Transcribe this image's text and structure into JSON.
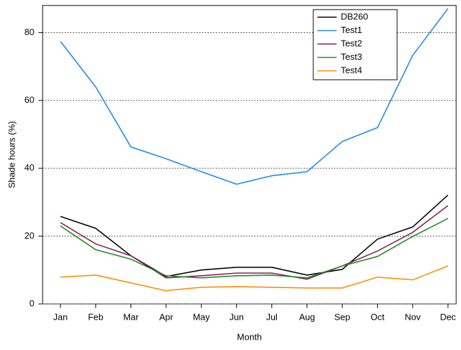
{
  "chart_data": {
    "type": "line",
    "xlabel": "Month",
    "ylabel": "Shade hours (%)",
    "categories": [
      "Jan",
      "Feb",
      "Mar",
      "Apr",
      "May",
      "Jun",
      "Jul",
      "Aug",
      "Sep",
      "Oct",
      "Nov",
      "Dec"
    ],
    "series": [
      {
        "name": "DB260",
        "color": "#000000",
        "values": [
          25.8,
          22.3,
          14.2,
          8.1,
          10.0,
          10.8,
          10.8,
          8.5,
          10.2,
          19.1,
          22.7,
          32.1
        ]
      },
      {
        "name": "Test1",
        "color": "#1e88f0",
        "values": [
          77.4,
          64.0,
          46.3,
          42.8,
          39.0,
          35.3,
          37.8,
          39.0,
          47.9,
          52.0,
          73.3,
          87.1
        ]
      },
      {
        "name": "Test2",
        "color": "#8b1a50",
        "values": [
          24.0,
          17.7,
          14.2,
          7.7,
          8.3,
          9.1,
          9.1,
          7.3,
          11.2,
          15.6,
          21.1,
          29.0
        ]
      },
      {
        "name": "Test3",
        "color": "#1e8b1e",
        "values": [
          23.0,
          16.0,
          13.2,
          8.3,
          7.7,
          8.3,
          8.5,
          7.7,
          11.2,
          14.0,
          19.9,
          25.2
        ]
      },
      {
        "name": "Test4",
        "color": "#ff8c00",
        "values": [
          7.9,
          8.5,
          6.2,
          3.9,
          4.9,
          5.1,
          4.9,
          4.7,
          4.7,
          7.9,
          7.1,
          11.2
        ]
      }
    ],
    "ylim": [
      0,
      88
    ],
    "yticks": [
      0,
      20,
      40,
      60,
      80
    ],
    "grid": true,
    "legend": "upper right"
  }
}
